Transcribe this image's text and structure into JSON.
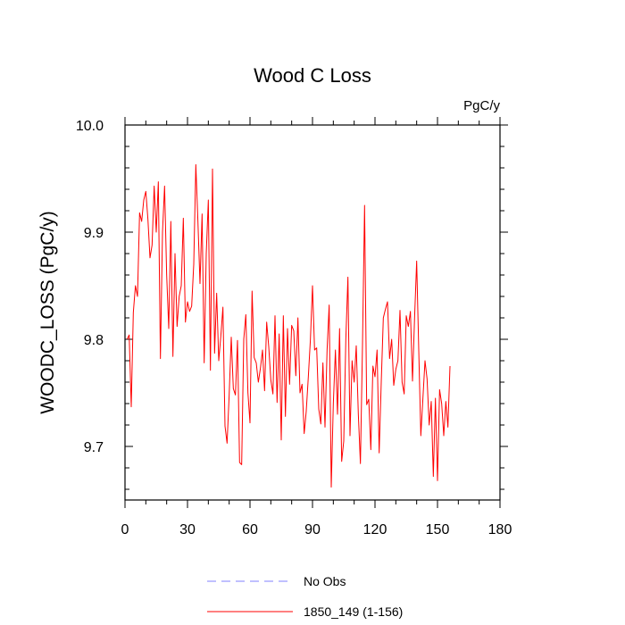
{
  "chart_data": {
    "type": "line",
    "title": "Wood C Loss",
    "units_label": "PgC/y",
    "xlabel": "",
    "ylabel": "WOODC_LOSS  (PgC/y)",
    "xlim": [
      0,
      180
    ],
    "ylim": [
      9.65,
      10.0
    ],
    "x_ticks": [
      0,
      30,
      60,
      90,
      120,
      150,
      180
    ],
    "x_tick_labels": [
      "0",
      "30",
      "60",
      "90",
      "120",
      "150",
      "180"
    ],
    "y_ticks": [
      9.7,
      9.8,
      9.9,
      10.0
    ],
    "y_tick_labels": [
      "9.7",
      "9.8",
      "9.9",
      "10.0"
    ],
    "legend": [
      {
        "label": "No Obs",
        "color": "#8080ff",
        "style": "dashed"
      },
      {
        "label": "1850_149 (1-156)",
        "color": "#ff0000",
        "style": "solid"
      }
    ],
    "series": [
      {
        "name": "1850_149 (1-156)",
        "color": "#ff0000",
        "x_start": 1,
        "values": [
          9.8,
          9.804,
          9.737,
          9.825,
          9.85,
          9.84,
          9.918,
          9.91,
          9.93,
          9.938,
          9.912,
          9.876,
          9.888,
          9.943,
          9.9,
          9.947,
          9.782,
          9.9,
          9.943,
          9.86,
          9.81,
          9.91,
          9.784,
          9.88,
          9.812,
          9.84,
          9.85,
          9.913,
          9.816,
          9.835,
          9.826,
          9.831,
          9.87,
          9.963,
          9.91,
          9.852,
          9.917,
          9.778,
          9.88,
          9.93,
          9.771,
          9.959,
          9.787,
          9.843,
          9.78,
          9.803,
          9.83,
          9.719,
          9.703,
          9.748,
          9.802,
          9.754,
          9.748,
          9.799,
          9.685,
          9.683,
          9.8,
          9.823,
          9.75,
          9.722,
          9.845,
          9.783,
          9.778,
          9.76,
          9.773,
          9.79,
          9.752,
          9.816,
          9.793,
          9.762,
          9.749,
          9.822,
          9.741,
          9.805,
          9.706,
          9.822,
          9.728,
          9.81,
          9.758,
          9.813,
          9.808,
          9.766,
          9.82,
          9.75,
          9.758,
          9.712,
          9.733,
          9.765,
          9.8,
          9.85,
          9.79,
          9.792,
          9.735,
          9.721,
          9.778,
          9.718,
          9.79,
          9.832,
          9.662,
          9.74,
          9.79,
          9.73,
          9.81,
          9.686,
          9.705,
          9.8,
          9.858,
          9.71,
          9.78,
          9.76,
          9.794,
          9.73,
          9.684,
          9.795,
          9.925,
          9.739,
          9.744,
          9.697,
          9.775,
          9.765,
          9.79,
          9.694,
          9.76,
          9.82,
          9.828,
          9.835,
          9.782,
          9.8,
          9.757,
          9.772,
          9.78,
          9.827,
          9.76,
          9.749,
          9.822,
          9.812,
          9.826,
          9.761,
          9.82,
          9.873,
          9.79,
          9.71,
          9.745,
          9.78,
          9.763,
          9.72,
          9.742,
          9.672,
          9.745,
          9.668,
          9.753,
          9.74,
          9.71,
          9.742,
          9.718,
          9.775
        ]
      }
    ]
  }
}
